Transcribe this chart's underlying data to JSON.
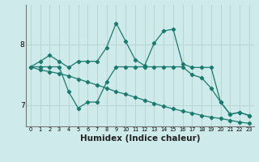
{
  "bg_color": "#ceeaea",
  "grid_color": "#b8d4d4",
  "line_color": "#1a7a6e",
  "xlabel": "Humidex (Indice chaleur)",
  "xlabel_fontsize": 7.5,
  "yticks": [
    7,
    8
  ],
  "xticks": [
    0,
    1,
    2,
    3,
    4,
    5,
    6,
    7,
    8,
    9,
    10,
    11,
    12,
    13,
    14,
    15,
    16,
    17,
    18,
    19,
    20,
    21,
    22,
    23
  ],
  "xlim": [
    -0.5,
    23.5
  ],
  "ylim": [
    6.65,
    8.65
  ],
  "line1_x": [
    0,
    1,
    2,
    3,
    4,
    5,
    6,
    7,
    8,
    9,
    10,
    11,
    12,
    13,
    14,
    15,
    16,
    17,
    18,
    19,
    20,
    21,
    22,
    23
  ],
  "line1_y": [
    7.63,
    7.72,
    7.82,
    7.72,
    7.62,
    7.72,
    7.72,
    7.72,
    7.95,
    8.35,
    8.05,
    7.75,
    7.65,
    8.02,
    8.22,
    8.25,
    7.68,
    7.62,
    7.62,
    7.62,
    7.05,
    6.85,
    6.88,
    6.83
  ],
  "line2_x": [
    0,
    1,
    2,
    3,
    4,
    5,
    6,
    7,
    8,
    9,
    10,
    11,
    12,
    13,
    14,
    15,
    16,
    17,
    18,
    19,
    20,
    21,
    22,
    23
  ],
  "line2_y": [
    7.63,
    7.63,
    7.63,
    7.63,
    7.22,
    6.95,
    7.05,
    7.05,
    7.38,
    7.63,
    7.63,
    7.63,
    7.63,
    7.63,
    7.63,
    7.63,
    7.63,
    7.5,
    7.45,
    7.28,
    7.05,
    6.85,
    6.88,
    6.83
  ],
  "line3_x": [
    0,
    1,
    2,
    3,
    4,
    5,
    6,
    7,
    8,
    9,
    10,
    11,
    12,
    13,
    14,
    15,
    16,
    17,
    18,
    19,
    20,
    21,
    22,
    23
  ],
  "line3_y": [
    7.63,
    7.58,
    7.55,
    7.52,
    7.48,
    7.43,
    7.38,
    7.33,
    7.28,
    7.22,
    7.18,
    7.13,
    7.08,
    7.03,
    6.98,
    6.94,
    6.9,
    6.87,
    6.83,
    6.8,
    6.78,
    6.75,
    6.72,
    6.7
  ]
}
